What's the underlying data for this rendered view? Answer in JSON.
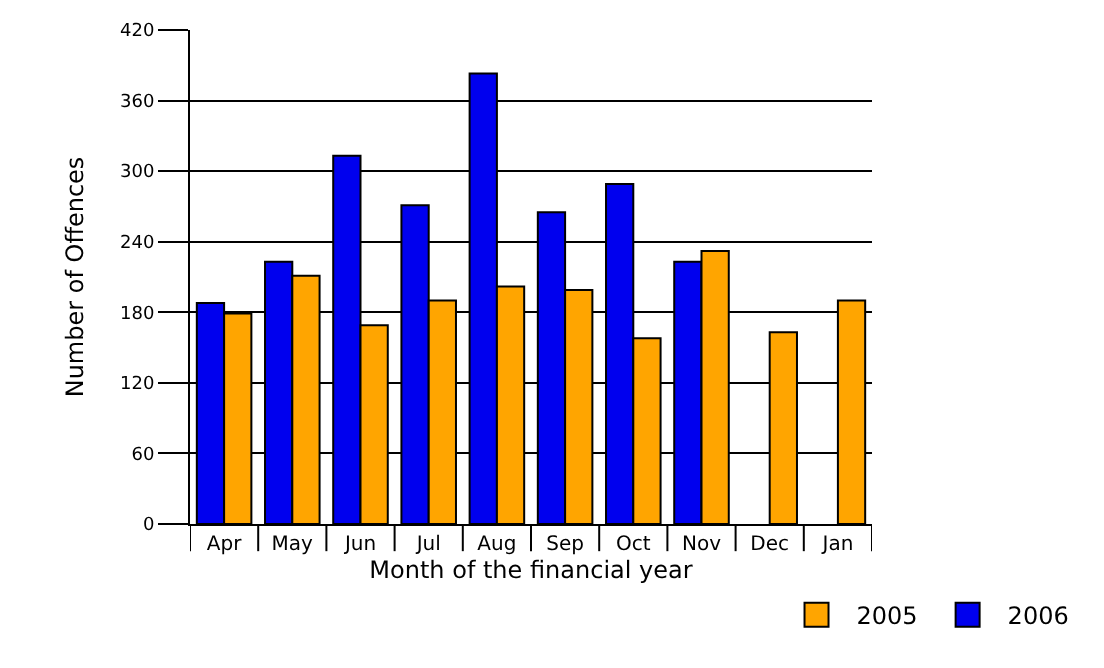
{
  "chart_data": {
    "type": "bar",
    "xlabel": "Month of the financial year",
    "ylabel": "Number of Offences",
    "categories": [
      "Apr",
      "May",
      "Jun",
      "Jul",
      "Aug",
      "Sep",
      "Oct",
      "Nov",
      "Dec",
      "Jan"
    ],
    "series": [
      {
        "name": "2006",
        "color": "#0000ee",
        "values": [
          188,
          223,
          313,
          271,
          383,
          265,
          289,
          223,
          null,
          null
        ]
      },
      {
        "name": "2005",
        "color": "#ffa500",
        "values": [
          179,
          211,
          169,
          190,
          202,
          199,
          158,
          232,
          163,
          190
        ]
      }
    ],
    "ylim": [
      0,
      420
    ],
    "yticks": [
      0,
      60,
      120,
      180,
      240,
      300,
      360,
      420
    ],
    "grid": "y",
    "legend": "bottom"
  }
}
